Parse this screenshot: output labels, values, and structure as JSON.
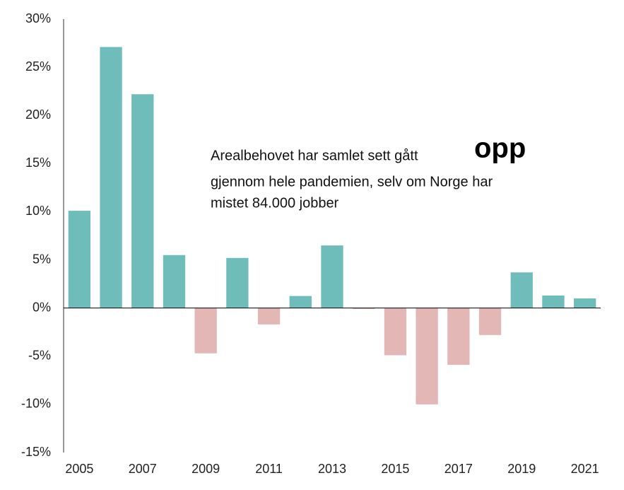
{
  "chart_data": {
    "type": "bar",
    "categories": [
      "2005",
      null,
      "2007",
      null,
      "2009",
      null,
      "2011",
      null,
      "2013",
      null,
      "2015",
      null,
      "2017",
      null,
      "2019",
      null,
      "2021"
    ],
    "values": [
      10.1,
      27.1,
      22.2,
      5.5,
      -4.7,
      5.2,
      -1.7,
      1.25,
      6.5,
      -0.1,
      -4.9,
      -10.0,
      -5.9,
      -2.8,
      3.7,
      1.3,
      1.0
    ],
    "positive_color": "#6fbdbb",
    "negative_color": "#e3b7b5",
    "ylim": [
      -15,
      30
    ],
    "yticks": [
      {
        "value": -15,
        "label": "-15%"
      },
      {
        "value": -10,
        "label": "-10%"
      },
      {
        "value": -5,
        "label": "-5%"
      },
      {
        "value": 0,
        "label": "0%"
      },
      {
        "value": 5,
        "label": "5%"
      },
      {
        "value": 10,
        "label": "10%"
      },
      {
        "value": 15,
        "label": "15%"
      },
      {
        "value": 20,
        "label": "20%"
      },
      {
        "value": 25,
        "label": "25%"
      },
      {
        "value": 30,
        "label": "30%"
      }
    ],
    "grid": false,
    "annotation": {
      "line1": "Arealbehovet har samlet sett gått",
      "emphasis": "opp",
      "line2": "gjennom hele pandemien, selv om Norge har",
      "line3": "mistet 84.000 jobber"
    }
  }
}
